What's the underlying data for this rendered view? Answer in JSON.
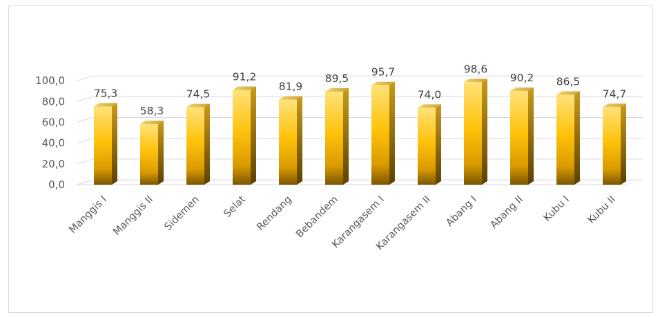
{
  "chart_data": {
    "type": "bar",
    "categories": [
      "Manggis I",
      "Manggis II",
      "Sidemen",
      "Selat",
      "Rendang",
      "Bebandem",
      "Karangasem I",
      "Karangasem II",
      "Abang I",
      "Abang II",
      "Kubu I",
      "Kubu II"
    ],
    "values": [
      75.3,
      58.3,
      74.5,
      91.2,
      81.9,
      89.5,
      95.7,
      74.0,
      98.6,
      90.2,
      86.5,
      74.7
    ],
    "data_labels": [
      "75,3",
      "58,3",
      "74,5",
      "91,2",
      "81,9",
      "89,5",
      "95,7",
      "74,0",
      "98,6",
      "90,2",
      "86,5",
      "74,7"
    ],
    "y_ticks": [
      "0,0",
      "20,0",
      "40,0",
      "60,0",
      "80,0",
      "100,0"
    ],
    "ylim": [
      0,
      100
    ],
    "grid": true,
    "legend": "none",
    "style": "3d-column",
    "colors": {
      "bar_light": "#ffd84d",
      "bar_mid": "#ffc000",
      "bar_dark": "#9a7000",
      "grid": "#d9d9d9"
    }
  }
}
